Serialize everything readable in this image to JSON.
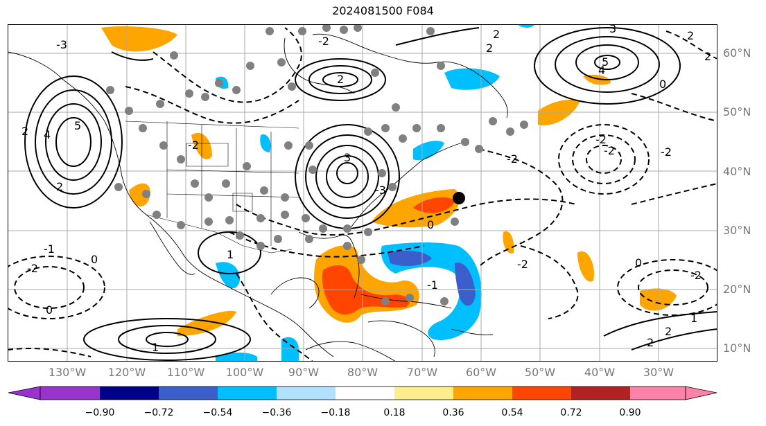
{
  "title": "2024081500 F084",
  "lat_labels": [
    {
      "text": "60°N"
    },
    {
      "text": "50°N"
    },
    {
      "text": "40°N"
    },
    {
      "text": "30°N"
    },
    {
      "text": "20°N"
    },
    {
      "text": "10°N"
    }
  ],
  "lon_labels": [
    {
      "text": "130°W"
    },
    {
      "text": "120°W"
    },
    {
      "text": "110°W"
    },
    {
      "text": "100°W"
    },
    {
      "text": "90°W"
    },
    {
      "text": "80°W"
    },
    {
      "text": "70°W"
    },
    {
      "text": "60°W"
    },
    {
      "text": "50°W"
    },
    {
      "text": "40°W"
    },
    {
      "text": "30°W"
    }
  ],
  "colorbar": {
    "colors": [
      "#9a32cd",
      "#00008b",
      "#3a5fcd",
      "#00bfff",
      "#b0e2ff",
      "#ffffff",
      "#ffec8b",
      "#ffa500",
      "#ff4500",
      "#b22222",
      "#ff82ab"
    ],
    "ticks": [
      "−0.90",
      "−0.72",
      "−0.54",
      "−0.36",
      "−0.18",
      "0.18",
      "0.36",
      "0.54",
      "0.72",
      "0.90"
    ]
  },
  "contour_labels": [
    "5",
    "4",
    "3",
    "2",
    "1",
    "0",
    "-1",
    "-2",
    "-3"
  ],
  "colors": {
    "positive_fill": "#ffa500",
    "strong_positive": "#ff4500",
    "negative_fill": "#00bfff",
    "strong_negative": "#3a5fcd",
    "dots": "#808080",
    "marker": "#000000"
  }
}
